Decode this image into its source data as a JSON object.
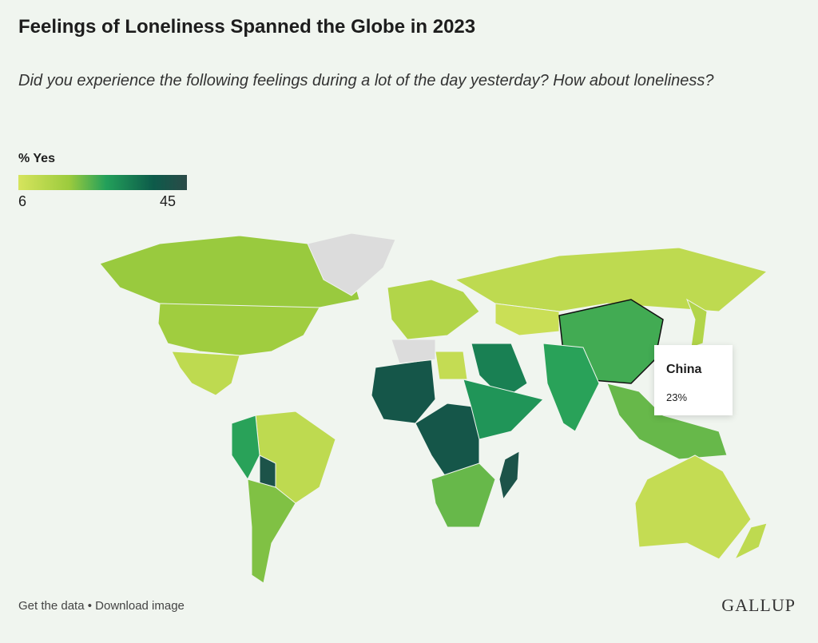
{
  "title": "Feelings of Loneliness Spanned the Globe in 2023",
  "subtitle": "Did you experience the following feelings during a lot of the day yesterday? How about loneliness?",
  "legend": {
    "title": "% Yes",
    "min": "6",
    "max": "45",
    "min_value": 6,
    "max_value": 45,
    "colors": [
      "#d6e45d",
      "#9ccb3d",
      "#23a05a",
      "#0d5b4a",
      "#2b4a48"
    ],
    "no_data_color": "#dcdcdc"
  },
  "tooltip": {
    "country": "China",
    "value": "23%"
  },
  "footer": {
    "get_data": "Get the data",
    "separator": "•",
    "download": "Download image"
  },
  "logo": "GALLUP",
  "regions": [
    {
      "name": "Canada",
      "value": 16
    },
    {
      "name": "United States",
      "value": 15
    },
    {
      "name": "Mexico",
      "value": 10
    },
    {
      "name": "Greenland",
      "value": null
    },
    {
      "name": "Brazil",
      "value": 10
    },
    {
      "name": "Peru",
      "value": 25
    },
    {
      "name": "Bolivia",
      "value": 40
    },
    {
      "name": "Argentina",
      "value": 18
    },
    {
      "name": "Western Europe",
      "value": 12
    },
    {
      "name": "Russia",
      "value": 10
    },
    {
      "name": "Kazakhstan",
      "value": 8
    },
    {
      "name": "China",
      "value": 23
    },
    {
      "name": "India",
      "value": 25
    },
    {
      "name": "Saudi Arabia",
      "value": 30
    },
    {
      "name": "Egypt",
      "value": 9
    },
    {
      "name": "West Africa",
      "value": 38
    },
    {
      "name": "Algeria",
      "value": null
    },
    {
      "name": "Central Africa",
      "value": 38
    },
    {
      "name": "East Africa",
      "value": 27
    },
    {
      "name": "Southern Africa",
      "value": 20
    },
    {
      "name": "Madagascar",
      "value": 40
    },
    {
      "name": "Southeast Asia",
      "value": 20
    },
    {
      "name": "Japan",
      "value": 12
    },
    {
      "name": "Australia",
      "value": 9
    },
    {
      "name": "New Zealand",
      "value": 10
    }
  ]
}
